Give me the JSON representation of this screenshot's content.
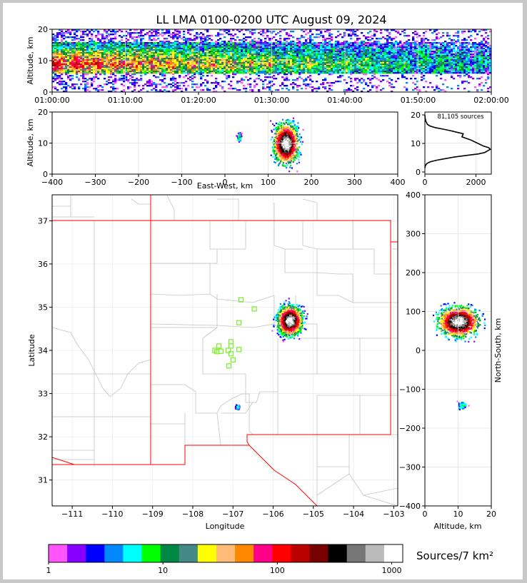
{
  "chart_data": [
    {
      "type": "heatmap",
      "panel": "altitude-time",
      "title": "LL LMA 0100-0200 UTC August 09, 2024",
      "ylabel": "Altitude, km",
      "ylim": [
        0,
        20
      ],
      "yticks": [
        "0",
        "10",
        "20"
      ],
      "xticks": [
        "01:00:00",
        "01:10:00",
        "01:20:00",
        "01:30:00",
        "01:40:00",
        "01:50:00",
        "02:00:00"
      ],
      "core_altitude_km": [
        6,
        16
      ],
      "peak_altitude_km": 9
    },
    {
      "type": "heatmap",
      "panel": "altitude-eastwest",
      "xlabel": "East-West, km",
      "ylabel": "Altitude, km",
      "xlim": [
        -400,
        400
      ],
      "ylim": [
        0,
        20
      ],
      "xticks": [
        "−400",
        "−300",
        "−200",
        "−100",
        "0",
        "100",
        "200",
        "300",
        "400"
      ],
      "yticks": [
        "0",
        "10",
        "20"
      ],
      "clusters": [
        {
          "x_range_km": [
            95,
            180
          ],
          "z_range_km": [
            1,
            20
          ],
          "peak_x_km": 140,
          "peak_z_km": 10
        },
        {
          "x_range_km": [
            25,
            40
          ],
          "z_range_km": [
            10,
            14
          ],
          "peak_x_km": 32,
          "peak_z_km": 12
        }
      ]
    },
    {
      "type": "line",
      "panel": "altitude-histogram",
      "annotation": "81,105 sources",
      "xlim": [
        0,
        2600
      ],
      "ylim": [
        0,
        20
      ],
      "xticks": [
        "0",
        "2000"
      ],
      "yticks": [
        "0",
        "10",
        "20"
      ],
      "series": [
        {
          "x": [
            0,
            10,
            40,
            90,
            220,
            480,
            800,
            1150,
            1600,
            2100,
            2350,
            2560,
            2500,
            2300,
            2050,
            1800,
            1450,
            1500,
            1250,
            1000,
            700,
            400,
            200,
            100,
            40,
            10,
            0
          ],
          "y": [
            2.0,
            2.5,
            3.0,
            3.5,
            4.0,
            4.5,
            5.0,
            5.5,
            6.0,
            6.5,
            7.0,
            8.0,
            8.5,
            9.0,
            10.0,
            11.0,
            12.0,
            13.0,
            13.5,
            14.0,
            14.5,
            15.0,
            15.5,
            16.0,
            17.0,
            18.0,
            19.0
          ]
        }
      ]
    },
    {
      "type": "heatmap",
      "panel": "plan-view",
      "xlabel": "Longitude",
      "ylabel": "Latitude",
      "xlim": [
        -111.5,
        -102.9
      ],
      "ylim": [
        30.4,
        37.6
      ],
      "xticks": [
        "−111",
        "−110",
        "−109",
        "−108",
        "−107",
        "−106",
        "−105",
        "−104",
        "−103"
      ],
      "yticks": [
        "31",
        "32",
        "33",
        "34",
        "35",
        "36",
        "37"
      ],
      "clusters": [
        {
          "lon": -105.6,
          "lat": 34.7,
          "r_lon": 0.45,
          "r_lat": 0.5
        },
        {
          "lon": -106.9,
          "lat": 32.7,
          "r_lon": 0.08,
          "r_lat": 0.1
        }
      ],
      "stations": [
        {
          "lon": -106.8,
          "lat": 35.17
        },
        {
          "lon": -106.47,
          "lat": 34.96
        },
        {
          "lon": -106.85,
          "lat": 34.64
        },
        {
          "lon": -107.05,
          "lat": 34.2
        },
        {
          "lon": -107.35,
          "lat": 34.1
        },
        {
          "lon": -107.05,
          "lat": 34.1
        },
        {
          "lon": -107.45,
          "lat": 34.0
        },
        {
          "lon": -107.3,
          "lat": 33.98
        },
        {
          "lon": -107.12,
          "lat": 34.0
        },
        {
          "lon": -106.85,
          "lat": 34.02
        },
        {
          "lon": -107.4,
          "lat": 33.97
        },
        {
          "lon": -107.05,
          "lat": 33.92
        },
        {
          "lon": -107.0,
          "lat": 33.78
        },
        {
          "lon": -107.1,
          "lat": 33.64
        }
      ]
    },
    {
      "type": "heatmap",
      "panel": "northsouth-altitude",
      "xlabel": "Altitude, km",
      "ylabel": "North-South, km",
      "xlim": [
        0,
        20
      ],
      "ylim": [
        -400,
        400
      ],
      "xticks": [
        "0",
        "10",
        "20"
      ],
      "yticks": [
        "−400",
        "−300",
        "−200",
        "−100",
        "0",
        "100",
        "200",
        "300",
        "400"
      ],
      "clusters": [
        {
          "z_range_km": [
            1,
            20
          ],
          "y_range_km": [
            40,
            160
          ],
          "peak_z_km": 10,
          "peak_y_km": 75
        },
        {
          "z_range_km": [
            9,
            14
          ],
          "y_range_km": [
            -160,
            -125
          ],
          "peak_z_km": 11,
          "peak_y_km": -140
        }
      ]
    },
    {
      "type": "colorbar",
      "panel": "density-colorbar",
      "label": "Sources/7 km²",
      "ticks": [
        "1",
        "10",
        "100",
        "1000"
      ],
      "scale": "log",
      "range": [
        1,
        1250
      ],
      "colors": [
        "#ff55ff",
        "#8800ff",
        "#0000ff",
        "#0088ff",
        "#00ffff",
        "#00ff00",
        "#008844",
        "#448888",
        "#ffff00",
        "#ffbb77",
        "#ff8800",
        "#ff0088",
        "#ff0000",
        "#bb0000",
        "#770000",
        "#000000",
        "#777777",
        "#bbbbbb",
        "#ffffff"
      ]
    }
  ]
}
